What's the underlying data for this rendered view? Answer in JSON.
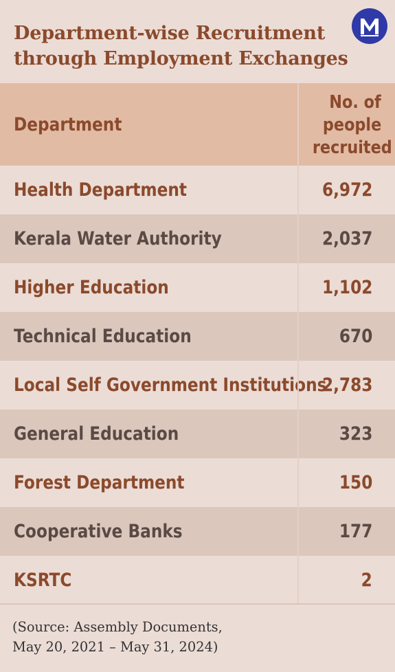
{
  "title_lines": [
    "Department-wise Recruitment",
    "through Employment Exchanges"
  ],
  "logo": {
    "icon": "m-letter-icon"
  },
  "chart_data": {
    "type": "table",
    "columns": [
      "Department",
      "No. of people recruited"
    ],
    "header_value_lines": [
      "No. of",
      "people",
      "recruited"
    ],
    "rows": [
      {
        "department": "Health Department",
        "value": "6,972"
      },
      {
        "department": "Kerala Water Authority",
        "value": "2,037"
      },
      {
        "department": "Higher Education",
        "value": "1,102"
      },
      {
        "department": "Technical Education",
        "value": "670"
      },
      {
        "department": "Local Self Government Institutions",
        "value": "2,783"
      },
      {
        "department": "General Education",
        "value": "323"
      },
      {
        "department": "Forest Department",
        "value": "150"
      },
      {
        "department": "Cooperative Banks",
        "value": "177"
      },
      {
        "department": "KSRTC",
        "value": "2"
      }
    ]
  },
  "source_lines": [
    "(Source: Assembly Documents,",
    "May 20, 2021 – May 31, 2024)"
  ],
  "colors": {
    "background": "#ecdcd6",
    "header_bg": "#e2bba5",
    "row_alt_bg": "#dcc7bd",
    "accent_text": "#8a4a2c",
    "muted_text": "#5a4a44",
    "logo": "#2f3aa8"
  }
}
